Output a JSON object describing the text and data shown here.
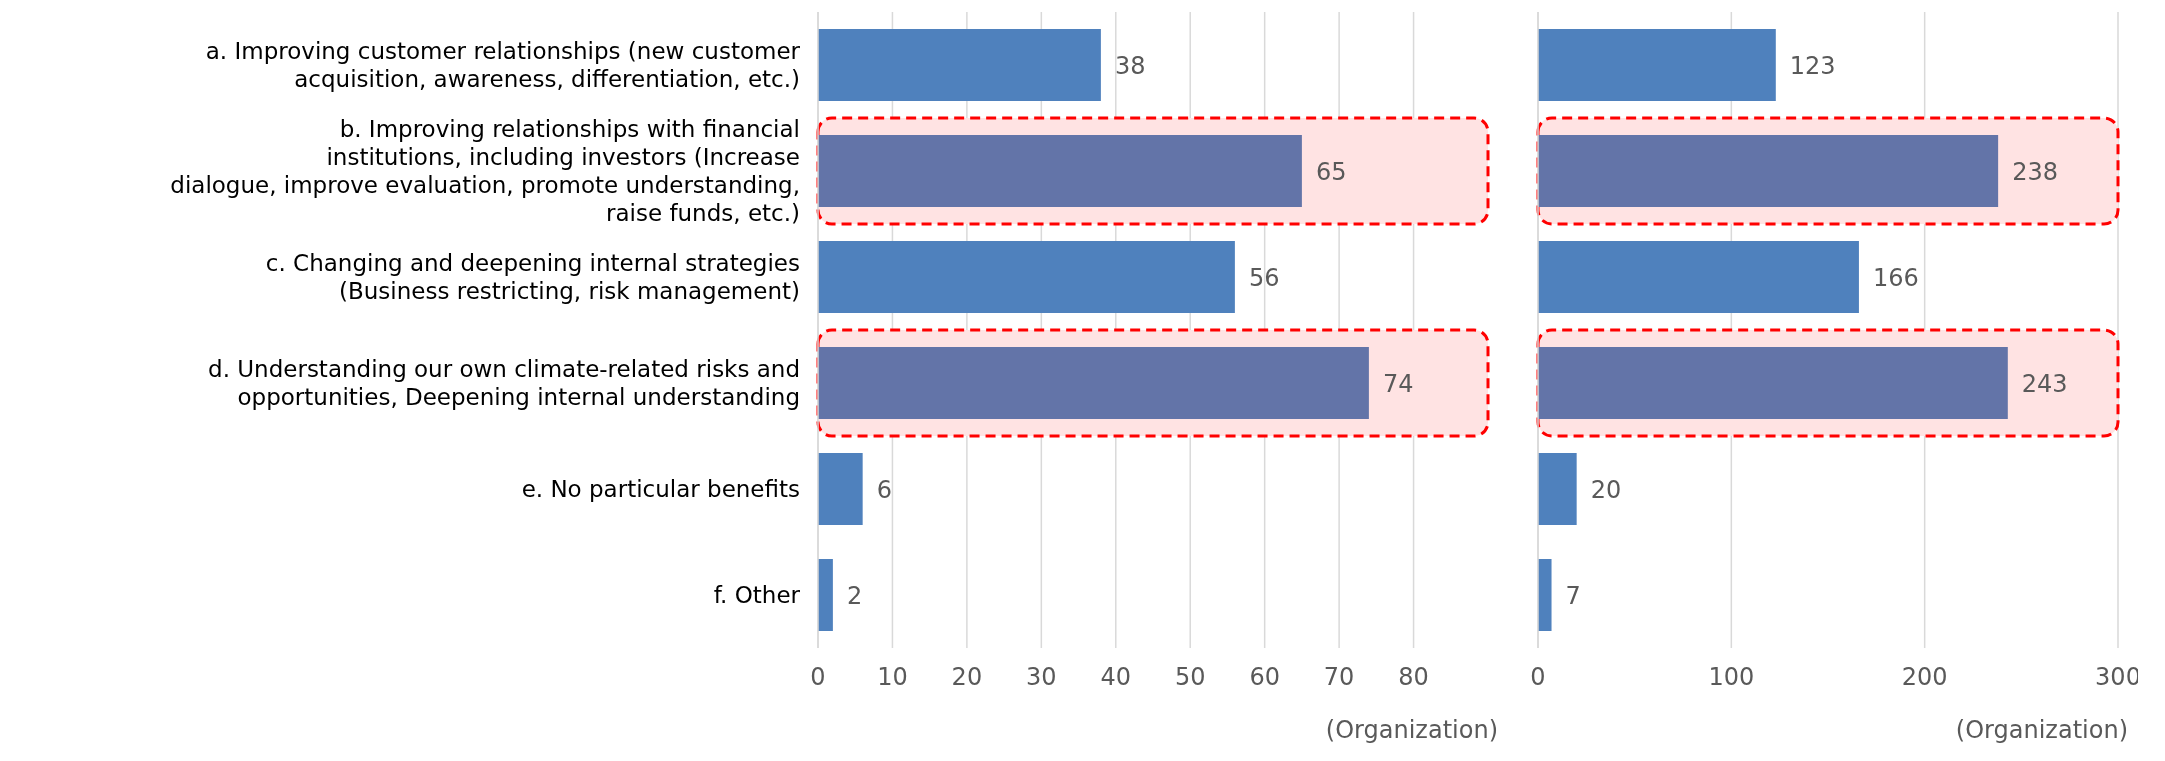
{
  "chart_data": [
    {
      "type": "bar",
      "orientation": "horizontal",
      "categories": [
        "a.  Improving customer relationships (new customer acquisition, awareness, differentiation, etc.)",
        "b.  Improving relationships with financial institutions, including investors (Increase dialogue, improve evaluation, promote understanding, raise funds, etc.)",
        "c.  Changing and deepening internal strategies (Business restricting, risk management)",
        "d.  Understanding our own climate-related risks and opportunities, Deepening internal understanding",
        "e.  No particular benefits",
        "f.  Other"
      ],
      "values": [
        38,
        65,
        56,
        74,
        6,
        2
      ],
      "colors": [
        "#4f81bd",
        "#6374a8",
        "#4f81bd",
        "#6374a8",
        "#4f81bd",
        "#4f81bd"
      ],
      "xlim": [
        0,
        90
      ],
      "xticks": [
        0,
        10,
        20,
        30,
        40,
        50,
        60,
        70,
        80
      ],
      "xlabel": "(Organization)",
      "grid": "x",
      "data_labels": true,
      "bands": [
        {
          "axis": "y",
          "from": "b.  Improving relationships with financial institutions, including investors (Increase dialogue, improve evaluation, promote understanding, raise funds, etc.)",
          "to": "b.  Improving relationships with financial institutions, including investors (Increase dialogue, improve evaluation, promote understanding, raise funds, etc.)",
          "color": "#ff0000"
        },
        {
          "axis": "y",
          "from": "d.  Understanding our own climate-related risks and opportunities, Deepening internal understanding",
          "to": "d.  Understanding our own climate-related risks and opportunities, Deepening internal understanding",
          "color": "#ff0000"
        }
      ]
    },
    {
      "type": "bar",
      "orientation": "horizontal",
      "categories": [
        "a.  Improving customer relationships (new customer acquisition, awareness, differentiation, etc.)",
        "b.  Improving relationships with financial institutions, including investors (Increase dialogue, improve evaluation, promote understanding, raise funds, etc.)",
        "c.  Changing and deepening internal strategies (Business restricting, risk management)",
        "d.  Understanding our own climate-related risks and opportunities, Deepening internal understanding",
        "e.  No particular benefits",
        "f.  Other"
      ],
      "values": [
        123,
        238,
        166,
        243,
        20,
        7
      ],
      "colors": [
        "#4f81bd",
        "#6374a8",
        "#4f81bd",
        "#6374a8",
        "#4f81bd",
        "#4f81bd"
      ],
      "xlim": [
        0,
        300
      ],
      "xticks": [
        0,
        100,
        200,
        300
      ],
      "xlabel": "(Organization)",
      "grid": "x",
      "data_labels": true,
      "tick_labels": "x",
      "bands": [
        {
          "axis": "y",
          "from": "b.  Improving relationships with financial institutions, including investors (Increase dialogue, improve evaluation, promote understanding, raise funds, etc.)",
          "to": "b.  Improving relationships with financial institutions, including investors (Increase dialogue, improve evaluation, promote understanding, raise funds, etc.)",
          "color": "#ff0000"
        },
        {
          "axis": "y",
          "from": "d.  Understanding our own climate-related risks and opportunities, Deepening internal understanding",
          "to": "d.  Understanding our own climate-related risks and opportunities, Deepening internal understanding",
          "color": "#ff0000"
        }
      ]
    }
  ]
}
